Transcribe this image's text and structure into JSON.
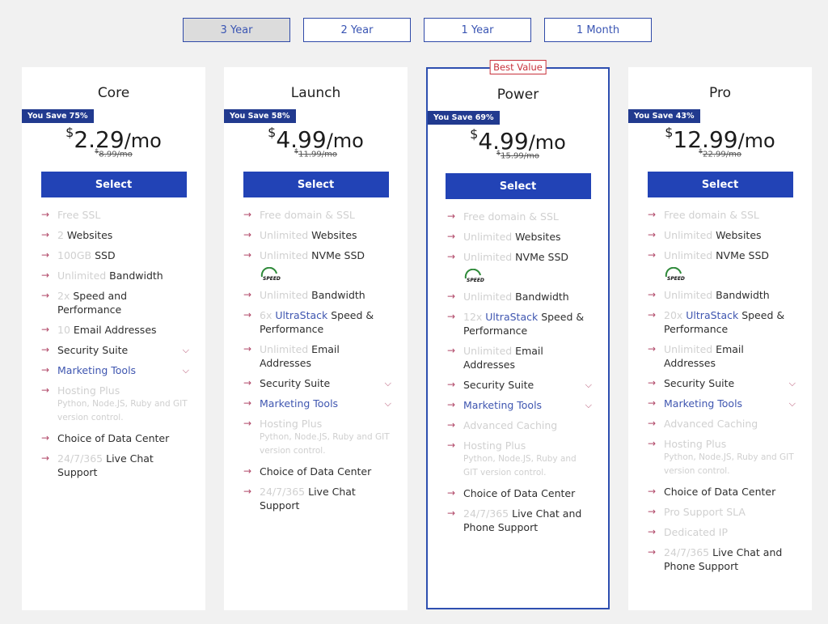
{
  "terms": [
    "3 Year",
    "2 Year",
    "1 Year",
    "1 Month"
  ],
  "active_term": 0,
  "best_value_label": "Best Value",
  "plans": [
    {
      "name": "Core",
      "save": "You Save 75%",
      "currency": "$",
      "amount": "2.29",
      "per": "/mo",
      "orig": "8.99/mo",
      "select": "Select",
      "features": [
        {
          "m": "Free SSL",
          "t": ""
        },
        {
          "m": "2",
          "t": " Websites"
        },
        {
          "m": "100GB",
          "t": " SSD"
        },
        {
          "m": "Unlimited",
          "t": " Bandwidth"
        },
        {
          "m": "2x",
          "t": " Speed and Performance"
        },
        {
          "m": "10",
          "t": " Email Addresses"
        },
        {
          "m": "",
          "t": "Security Suite",
          "chev": true
        },
        {
          "m": "",
          "b": "Marketing Tools",
          "chev": true
        },
        {
          "m": "Hosting Plus",
          "small": "Python, Node.JS, Ruby and GIT version control."
        },
        {
          "m": "",
          "t": "Choice of Data Center"
        },
        {
          "m": "24/7/365",
          "t": " Live Chat Support"
        }
      ]
    },
    {
      "name": "Launch",
      "save": "You Save 58%",
      "currency": "$",
      "amount": "4.99",
      "per": "/mo",
      "orig": "11.99/mo",
      "select": "Select",
      "features": [
        {
          "m": "Free domain & SSL",
          "t": ""
        },
        {
          "m": "Unlimited",
          "t": " Websites"
        },
        {
          "m": "Unlimited",
          "t": " NVMe SSD",
          "speed": true
        },
        {
          "m": "Unlimited",
          "t": " Bandwidth"
        },
        {
          "m": "6x ",
          "b": "UltraStack",
          "t": " Speed & Performance"
        },
        {
          "m": "Unlimited",
          "t": " Email Addresses"
        },
        {
          "m": "",
          "t": "Security Suite",
          "chev": true
        },
        {
          "m": "",
          "b": "Marketing Tools",
          "chev": true
        },
        {
          "m": "Hosting Plus",
          "small": "Python, Node.JS, Ruby and GIT version control."
        },
        {
          "m": "",
          "t": "Choice of Data Center"
        },
        {
          "m": "24/7/365",
          "t": " Live Chat Support"
        }
      ]
    },
    {
      "name": "Power",
      "save": "You Save 69%",
      "currency": "$",
      "amount": "4.99",
      "per": "/mo",
      "orig": "15.99/mo",
      "select": "Select",
      "best": true,
      "features": [
        {
          "m": "Free domain & SSL",
          "t": ""
        },
        {
          "m": "Unlimited",
          "t": " Websites"
        },
        {
          "m": "Unlimited",
          "t": " NVMe SSD",
          "speed": true
        },
        {
          "m": "Unlimited",
          "t": " Bandwidth"
        },
        {
          "m": "12x ",
          "b": "UltraStack",
          "t": " Speed & Performance"
        },
        {
          "m": "Unlimited",
          "t": " Email Addresses"
        },
        {
          "m": "",
          "t": "Security Suite",
          "chev": true
        },
        {
          "m": "",
          "b": "Marketing Tools",
          "chev": true
        },
        {
          "m": "Advanced Caching",
          "t": ""
        },
        {
          "m": "Hosting Plus",
          "small": "Python, Node.JS, Ruby and GIT version control."
        },
        {
          "m": "",
          "t": "Choice of Data Center"
        },
        {
          "m": "24/7/365",
          "t": " Live Chat and Phone Support"
        }
      ]
    },
    {
      "name": "Pro",
      "save": "You Save 43%",
      "currency": "$",
      "amount": "12.99",
      "per": "/mo",
      "orig": "22.99/mo",
      "select": "Select",
      "features": [
        {
          "m": "Free domain & SSL",
          "t": ""
        },
        {
          "m": "Unlimited",
          "t": " Websites"
        },
        {
          "m": "Unlimited",
          "t": " NVMe SSD",
          "speed": true
        },
        {
          "m": "Unlimited",
          "t": " Bandwidth"
        },
        {
          "m": "20x ",
          "b": "UltraStack",
          "t": " Speed & Performance"
        },
        {
          "m": "Unlimited",
          "t": " Email Addresses"
        },
        {
          "m": "",
          "t": "Security Suite",
          "chev": true
        },
        {
          "m": "",
          "b": "Marketing Tools",
          "chev": true
        },
        {
          "m": "Advanced Caching",
          "t": ""
        },
        {
          "m": "Hosting Plus",
          "small": "Python, Node.JS, Ruby and GIT version control."
        },
        {
          "m": "",
          "t": "Choice of Data Center"
        },
        {
          "m": "Pro Support SLA",
          "t": ""
        },
        {
          "m": "Dedicated IP",
          "t": ""
        },
        {
          "m": "24/7/365",
          "t": " Live Chat and Phone Support"
        }
      ]
    }
  ],
  "speed_badge_text": "SPEED",
  "colors": {
    "accent": "#2243b6",
    "arrow": "#b24a6a",
    "badge": "#213a8f",
    "best": "#c8323c"
  }
}
